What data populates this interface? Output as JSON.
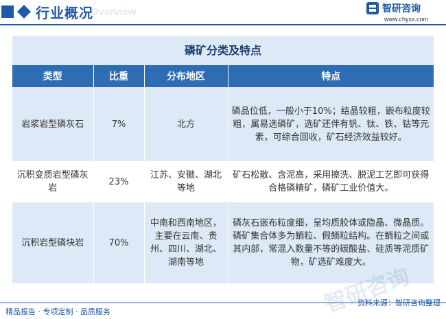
{
  "header": {
    "title": "行业概况",
    "subtitle": "Overview",
    "logo_text": "智研咨询",
    "logo_url": "www.chyxx.com"
  },
  "table": {
    "title": "磷矿分类及特点",
    "columns": [
      "类型",
      "比重",
      "分布地区",
      "特点"
    ],
    "rows": [
      [
        "岩浆岩型磷灰石",
        "7%",
        "北方",
        "磷品位低，一般小于10%；结晶较粗，嵌布粒度较粗，属易选磷矿，选矿还伴有钒、钛、铁、钴等元素，可综合回收，矿石经济效益较好。"
      ],
      [
        "沉积变质岩型磷灰岩",
        "23%",
        "江苏、安徽、湖北等地",
        "矿石松散、含泥高，采用擦洗、脱泥工艺即可获得合格磷精矿，磷矿工业价值大。"
      ],
      [
        "沉积岩型磷块岩",
        "70%",
        "中南和西南地区，主要在云南、贵州、四川、湖北、湖南等地",
        "磷灰石嵌布粒度细，呈均质胶体或隐晶、微晶质。磷矿集合体多为鲕粒、假鲕粒结构。在鲕粒之间或其内部，常混入数量不等的碳酸盐、硅质等泥质矿物，矿选矿难度大。"
      ]
    ]
  },
  "watermark": "智研咨询",
  "footer": {
    "left": "精品报告 · 专项定制 · 品质服务",
    "source": "资料来源：智研咨询整理"
  },
  "colors": {
    "brand": "#1e5aa8",
    "table_header": "#2e6db4",
    "band": "#dde9f6"
  }
}
